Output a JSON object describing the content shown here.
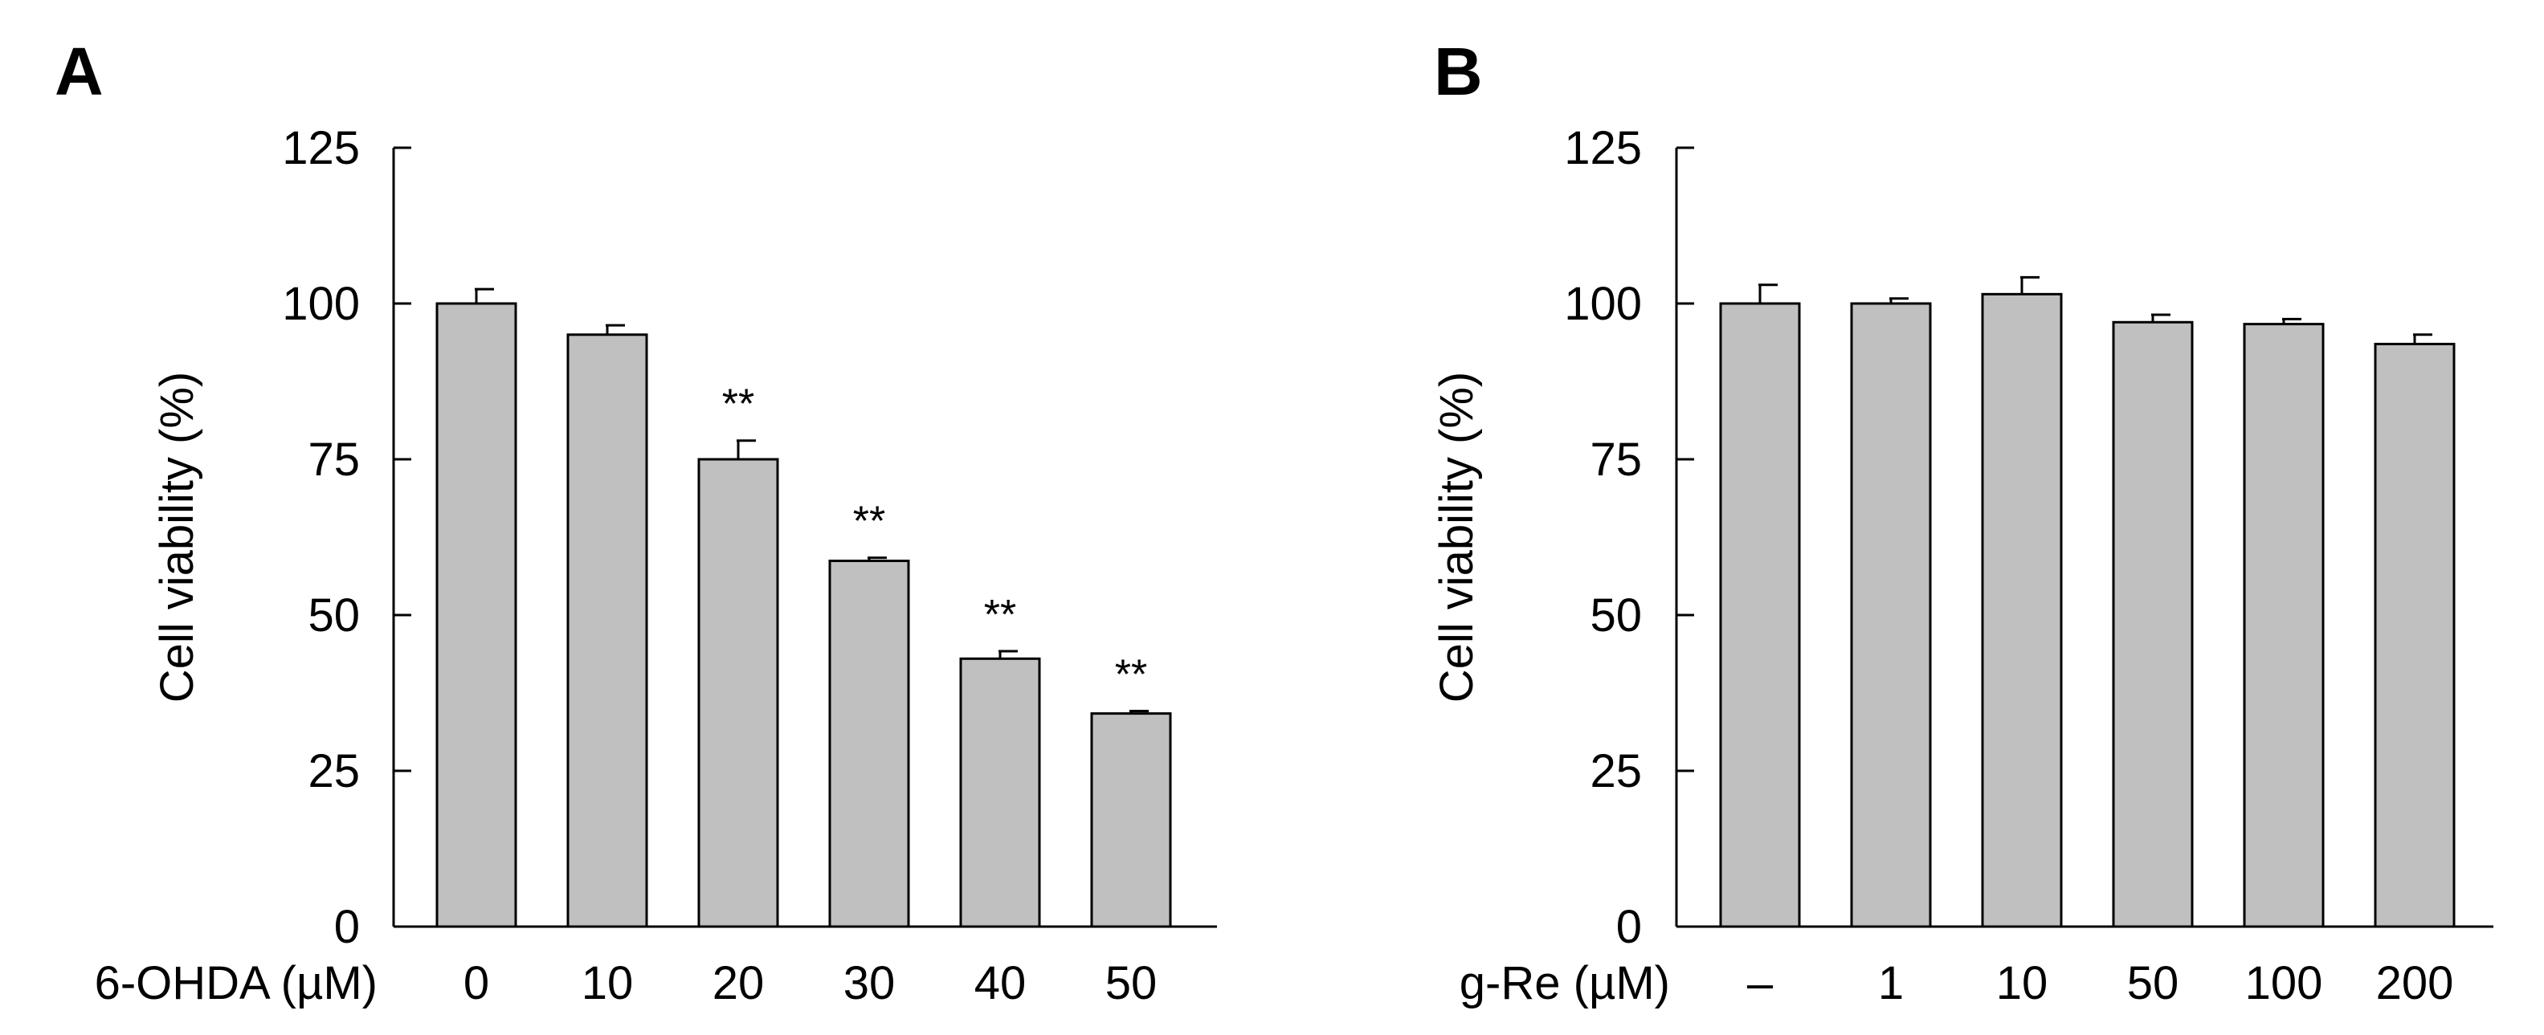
{
  "bar_color": "#c0c0c0",
  "chart_data": [
    {
      "type": "bar",
      "panel_label": "A",
      "ylabel": "Cell viability (%)",
      "xlabel": "6-OHDA (µM)",
      "ylim": [
        0,
        125
      ],
      "yticks": [
        "0",
        "25",
        "50",
        "75",
        "100",
        "125"
      ],
      "categories": [
        "0",
        "10",
        "20",
        "30",
        "40",
        "50"
      ],
      "values": [
        100,
        95,
        75,
        58.7,
        43,
        34.2
      ],
      "errors": [
        2.3,
        1.5,
        3.0,
        0.5,
        1.2,
        0.4
      ],
      "significance": [
        "",
        "",
        "**",
        "**",
        "**",
        "**"
      ]
    },
    {
      "type": "bar",
      "panel_label": "B",
      "ylabel": "Cell viability (%)",
      "xlabel": "g-Re (µM)",
      "ylim": [
        0,
        125
      ],
      "yticks": [
        "0",
        "25",
        "50",
        "75",
        "100",
        "125"
      ],
      "categories": [
        "–",
        "1",
        "10",
        "50",
        "100",
        "200"
      ],
      "values": [
        100,
        100,
        101.5,
        97,
        96.7,
        93.5
      ],
      "errors": [
        3.0,
        0.8,
        2.7,
        1.2,
        0.8,
        1.5
      ],
      "significance": [
        "",
        "",
        "",
        "",
        "",
        ""
      ]
    }
  ]
}
